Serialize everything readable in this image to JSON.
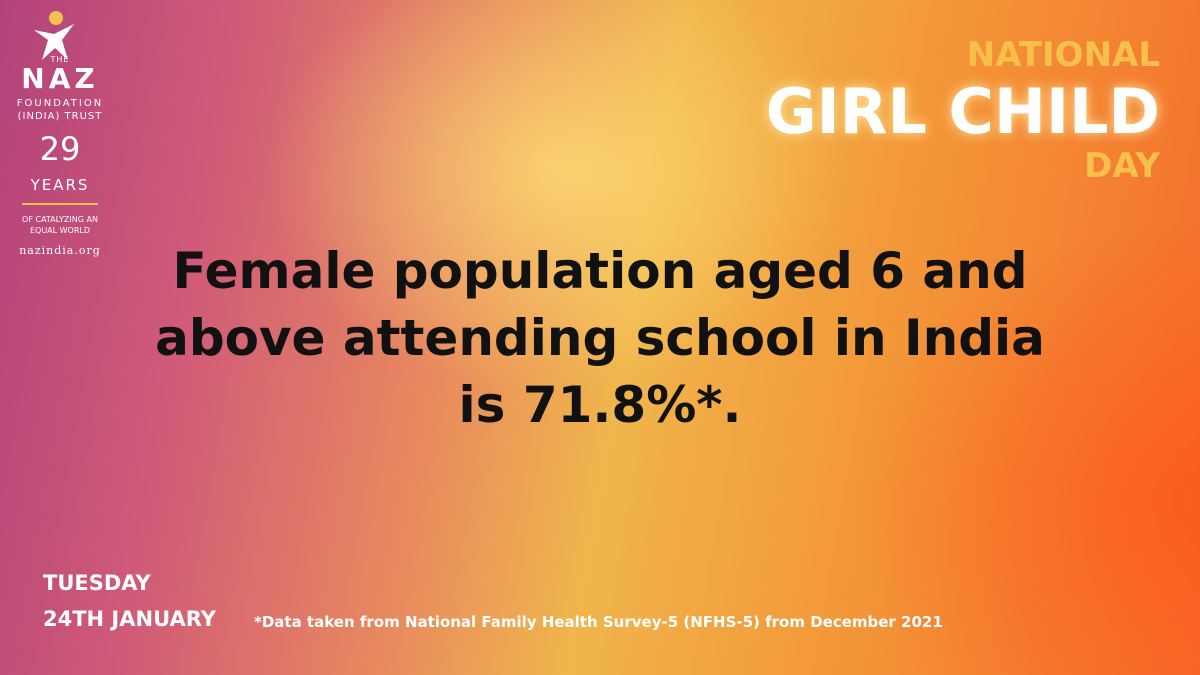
{
  "logo": {
    "the": "THE",
    "name": "NAZ",
    "line1": "FOUNDATION",
    "line2": "(INDIA) TRUST",
    "years_number": "29",
    "years_word": "YEARS",
    "tagline1": "OF CATALYZING AN",
    "tagline2": "EQUAL WORLD",
    "website": "nazindia.org"
  },
  "headline": {
    "line1": "NATIONAL",
    "line2": "GIRL CHILD",
    "line3": "DAY"
  },
  "message": {
    "lines": [
      "Female population aged 6 and",
      "above attending school in India",
      "is 71.8%*."
    ]
  },
  "date": {
    "weekday": "TUESDAY",
    "day": "24TH JANUARY"
  },
  "footnote": "*Data taken from National Family Health Survey-5 (NFHS-5) from December 2021"
}
